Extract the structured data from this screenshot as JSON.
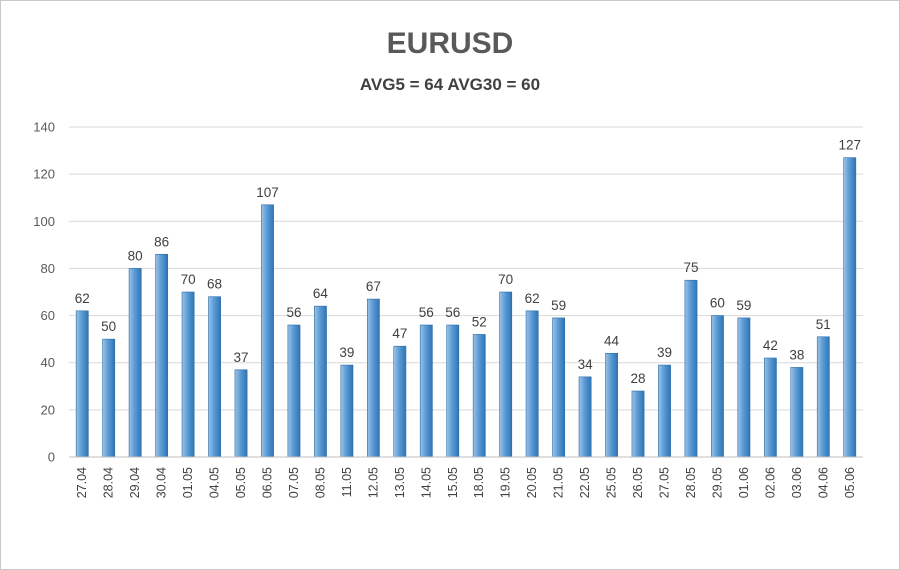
{
  "chart_data": {
    "type": "bar",
    "title": "EURUSD",
    "subtitle": "AVG5 = 64 AVG30 = 60",
    "xlabel": "",
    "ylabel": "",
    "ylim": [
      0,
      140
    ],
    "yticks": [
      0,
      20,
      40,
      60,
      80,
      100,
      120,
      140
    ],
    "grid": true,
    "legend": "none",
    "categories": [
      "27.04",
      "28.04",
      "29.04",
      "30.04",
      "01.05",
      "04.05",
      "05.05",
      "06.05",
      "07.05",
      "08.05",
      "11.05",
      "12.05",
      "13.05",
      "14.05",
      "15.05",
      "18.05",
      "19.05",
      "20.05",
      "21.05",
      "22.05",
      "25.05",
      "26.05",
      "27.05",
      "28.05",
      "29.05",
      "01.06",
      "02.06",
      "03.06",
      "04.06",
      "05.06"
    ],
    "values": [
      62,
      50,
      80,
      86,
      70,
      68,
      37,
      107,
      56,
      64,
      39,
      67,
      47,
      56,
      56,
      52,
      70,
      62,
      59,
      34,
      44,
      28,
      39,
      75,
      60,
      59,
      42,
      38,
      51,
      127
    ],
    "bar_color": "#5b9bd5",
    "bar_color_light": "#9dc3e6",
    "bar_color_dark": "#2e75b6"
  }
}
